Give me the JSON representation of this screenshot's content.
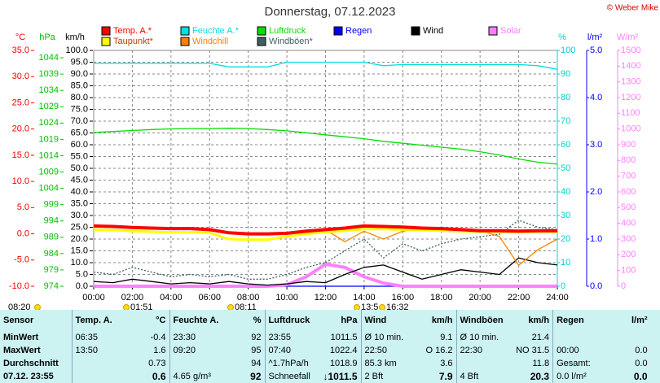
{
  "title": "Donnerstag, 07.12.2023",
  "copyright": "© Weber Mike",
  "chart_data": {
    "type": "line",
    "x": [
      0,
      1,
      2,
      3,
      4,
      5,
      6,
      7,
      8,
      9,
      10,
      11,
      12,
      13,
      14,
      15,
      16,
      17,
      18,
      19,
      20,
      21,
      22,
      23,
      24
    ],
    "xlim": [
      0,
      24
    ],
    "xticks": [
      {
        "value": 0,
        "label": "00:00"
      },
      {
        "value": 2,
        "label": "02:00"
      },
      {
        "value": 4,
        "label": "04:00"
      },
      {
        "value": 6,
        "label": "06:00"
      },
      {
        "value": 8,
        "label": "08:00"
      },
      {
        "value": 10,
        "label": "10:00"
      },
      {
        "value": 12,
        "label": "12:00"
      },
      {
        "value": 14,
        "label": "14:00"
      },
      {
        "value": 16,
        "label": "16:00"
      },
      {
        "value": 18,
        "label": "18:00"
      },
      {
        "value": 20,
        "label": "20:00"
      },
      {
        "value": 22,
        "label": "22:00"
      },
      {
        "value": 24,
        "label": "24:00"
      }
    ],
    "grid": true,
    "axes": [
      {
        "label": "°C",
        "color": "#ff0000",
        "lim": [
          -10,
          35
        ],
        "ticks": [
          {
            "value": -10,
            "label": "-10.0"
          },
          {
            "value": -5,
            "label": "-5.0"
          },
          {
            "value": 0,
            "label": "0.0"
          },
          {
            "value": 5,
            "label": "5.0"
          },
          {
            "value": 10,
            "label": "10.0"
          },
          {
            "value": 15,
            "label": "15.0"
          },
          {
            "value": 20,
            "label": "20.0"
          },
          {
            "value": 25,
            "label": "25.0"
          },
          {
            "value": 30,
            "label": "30.0"
          },
          {
            "value": 35,
            "label": "35.0"
          }
        ]
      },
      {
        "label": "hPa",
        "color": "#00c000",
        "lim": [
          974,
          1046.25
        ],
        "ticks": [
          974,
          979,
          984,
          989,
          994,
          999,
          1004,
          1009,
          1014,
          1019,
          1024,
          1029,
          1034,
          1039,
          1044
        ]
      },
      {
        "label": "km/h",
        "color": "#000000",
        "lim": [
          0,
          100
        ],
        "ticks": [
          {
            "value": 0,
            "label": "0.0"
          },
          {
            "value": 5,
            "label": "5.0"
          },
          {
            "value": 10,
            "label": "10.0"
          },
          {
            "value": 15,
            "label": "15.0"
          },
          {
            "value": 20,
            "label": "20.0"
          },
          {
            "value": 25,
            "label": "25.0"
          },
          {
            "value": 30,
            "label": "30.0"
          },
          {
            "value": 35,
            "label": "35.0"
          },
          {
            "value": 40,
            "label": "40.0"
          },
          {
            "value": 45,
            "label": "45.0"
          },
          {
            "value": 50,
            "label": "50.0"
          },
          {
            "value": 55,
            "label": "55.0"
          },
          {
            "value": 60,
            "label": "60.0"
          },
          {
            "value": 65,
            "label": "65.0"
          },
          {
            "value": 70,
            "label": "70.0"
          },
          {
            "value": 75,
            "label": "75.0"
          },
          {
            "value": 80,
            "label": "80.0"
          },
          {
            "value": 85,
            "label": "85.0"
          },
          {
            "value": 90,
            "label": "90.0"
          },
          {
            "value": 95,
            "label": "95.0"
          },
          {
            "value": 100,
            "label": "100.0"
          }
        ]
      },
      {
        "label": "%",
        "color": "#00d0d0",
        "lim": [
          0,
          100
        ],
        "ticks": [
          0,
          10,
          20,
          30,
          40,
          50,
          60,
          70,
          80,
          90,
          100
        ]
      },
      {
        "label": "l/m²",
        "color": "#0000ff",
        "lim": [
          0,
          5
        ],
        "ticks": [
          {
            "value": 0,
            "label": "0.0"
          },
          {
            "value": 1,
            "label": "1.0"
          },
          {
            "value": 2,
            "label": "2.0"
          },
          {
            "value": 3,
            "label": "3.0"
          },
          {
            "value": 4,
            "label": "4.0"
          },
          {
            "value": 5,
            "label": "5.0"
          }
        ]
      },
      {
        "label": "W/m²",
        "color": "#ff80ff",
        "lim": [
          0,
          1500
        ],
        "ticks": [
          0,
          100,
          200,
          300,
          400,
          500,
          600,
          700,
          800,
          900,
          1000,
          1100,
          1200,
          1300,
          1400,
          1500
        ]
      }
    ],
    "series": [
      {
        "name": "Temp. A.*",
        "color": "#ff0000",
        "axis": 0,
        "values": [
          1.5,
          1.4,
          1.2,
          1.1,
          1.0,
          1.0,
          0.8,
          0.2,
          0.0,
          0.0,
          0.1,
          0.5,
          0.8,
          1.1,
          1.5,
          1.4,
          1.3,
          1.1,
          1.0,
          0.8,
          0.6,
          0.6,
          0.5,
          0.6,
          0.6
        ]
      },
      {
        "name": "Feuchte A.*",
        "color": "#00e0e0",
        "axis": 3,
        "values": [
          94.5,
          94.5,
          94.5,
          94.5,
          94.5,
          94.5,
          94.5,
          93,
          93,
          93,
          95,
          95,
          95,
          95,
          95,
          93.5,
          94,
          94,
          94,
          94,
          94,
          94,
          94,
          93.5,
          92
        ]
      },
      {
        "name": "Luftdruck",
        "color": "#00e000",
        "axis": 1,
        "values": [
          1021.1,
          1021.4,
          1021.7,
          1022,
          1022.2,
          1022.3,
          1022.3,
          1022.4,
          1022.3,
          1022,
          1021.6,
          1021,
          1020.4,
          1019.8,
          1019.2,
          1018.4,
          1017.8,
          1017.2,
          1016.6,
          1016,
          1015.2,
          1014.2,
          1013,
          1012,
          1011.4
        ]
      },
      {
        "name": "Regen",
        "color": "#0000ff",
        "axis": 4,
        "values": [
          0,
          0,
          0,
          0,
          0,
          0,
          0,
          0,
          0,
          0,
          0,
          0,
          0,
          0,
          0,
          0,
          0,
          0,
          0,
          0,
          0,
          0,
          0,
          0,
          0
        ]
      },
      {
        "name": "Wind",
        "color": "#000000",
        "axis": 2,
        "values": [
          2,
          1.5,
          3,
          2,
          1,
          1.5,
          1,
          2,
          1,
          0.5,
          1,
          2,
          1.5,
          5,
          8,
          9,
          6,
          3,
          5,
          7,
          6,
          5,
          12,
          10,
          9
        ]
      },
      {
        "name": "Solar",
        "color": "#ff80ff",
        "axis": 5,
        "values": [
          0,
          0,
          0,
          0,
          0,
          0,
          0,
          0,
          0,
          0,
          10,
          60,
          140,
          120,
          60,
          20,
          0,
          0,
          0,
          0,
          0,
          0,
          0,
          0,
          0
        ]
      },
      {
        "name": "Taupunkt*",
        "color": "#ffff00",
        "axis": 0,
        "values": [
          0.8,
          0.7,
          0.5,
          0.4,
          0.3,
          0.3,
          0.2,
          -1.0,
          -1.1,
          -1.1,
          -0.5,
          0,
          0.3,
          0.6,
          0.9,
          0.9,
          0.8,
          0.7,
          0.6,
          0.5,
          0.4,
          0.4,
          0.3,
          0.4,
          0.4
        ]
      },
      {
        "name": "Windchill",
        "color": "#ff8000",
        "axis": 0,
        "values": [
          1.5,
          1.4,
          1.2,
          1.1,
          1.0,
          1.0,
          0.8,
          0.2,
          0.0,
          0.0,
          0.1,
          0.5,
          0.8,
          -1.5,
          0.5,
          -1.0,
          0.5,
          1.1,
          1.0,
          0.8,
          0.6,
          -0.5,
          -6.0,
          -3.0,
          -1.0
        ]
      },
      {
        "name": "Windböen*",
        "color": "#406060",
        "axis": 2,
        "values": [
          6,
          5,
          8,
          6,
          4,
          5,
          4,
          5,
          3,
          3,
          5,
          8,
          10,
          15,
          20,
          12,
          18,
          15,
          18,
          20,
          21,
          22,
          28,
          25,
          24
        ]
      }
    ],
    "annotations": [
      "08:20",
      "01:51",
      "08:11",
      "13:5",
      "16:32"
    ]
  },
  "table": {
    "header": [
      "Sensor",
      "Temp. A.",
      "°C",
      "Feuchte A.",
      "%",
      "Luftdruck",
      "hPa",
      "Wind",
      "km/h",
      "Windböen",
      "km/h",
      "Regen",
      "l/m²"
    ],
    "rows": [
      [
        "MinWert",
        "06:35",
        "-0.4",
        "23:30",
        "92",
        "23:55",
        "1011.5",
        "Ø 10 min.",
        "9.1",
        "Ø 10 min.",
        "21.4",
        "",
        ""
      ],
      [
        "MaxWert",
        "13:50",
        "1.6",
        "09:20",
        "95",
        "07:40",
        "1022.4",
        "22:50",
        "O 16.2",
        "22:30",
        "NO 31.5",
        "00:00",
        "0.0"
      ],
      [
        "Durchschnitt",
        "",
        "0.73",
        "",
        "94",
        "^1.7hPa/h",
        "1018.9",
        "85.3 km",
        "3.6",
        "",
        "11.8",
        "Gesamt:",
        "0.0"
      ],
      [
        "07.12. 23:55",
        "",
        "0.6",
        "4.65 g/m³",
        "92",
        "Schneefall",
        "↓1011.5",
        "2 Bft",
        "7.9",
        "4 Bft",
        "20.3",
        "0.0 l/m²",
        "0.0"
      ]
    ]
  }
}
